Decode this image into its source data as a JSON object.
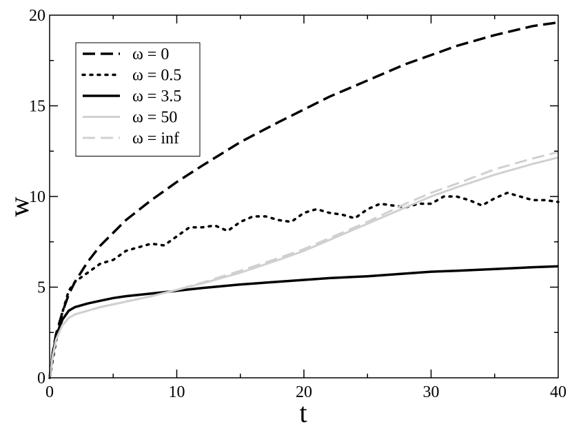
{
  "chart_data": {
    "type": "line",
    "title": "",
    "xlabel": "t",
    "ylabel": "w",
    "xlim": [
      0,
      40
    ],
    "ylim": [
      0,
      20
    ],
    "xticks": [
      0,
      10,
      20,
      30,
      40
    ],
    "yticks": [
      0,
      5,
      10,
      15,
      20
    ],
    "xtick_labels": [
      "0",
      "10",
      "20",
      "30",
      "40"
    ],
    "ytick_labels": [
      "0",
      "5",
      "10",
      "15",
      "20"
    ],
    "grid": false,
    "legend_position": "top-left",
    "series": [
      {
        "name": "ω = 0",
        "color": "#000000",
        "style": "dashed",
        "x": [
          0,
          0.25,
          0.5,
          1,
          1.5,
          2,
          3,
          4,
          5,
          6,
          8,
          10,
          12,
          15,
          18,
          20,
          22,
          25,
          28,
          30,
          32,
          35,
          38,
          40
        ],
        "y": [
          0,
          1.4,
          2.4,
          3.6,
          4.6,
          5.3,
          6.4,
          7.3,
          8.0,
          8.7,
          9.8,
          10.8,
          11.7,
          13.0,
          14.1,
          14.8,
          15.5,
          16.4,
          17.3,
          17.8,
          18.3,
          18.9,
          19.4,
          19.6
        ]
      },
      {
        "name": "ω = 0.5",
        "color": "#000000",
        "style": "dotted",
        "x": [
          0,
          0.5,
          1,
          1.5,
          2,
          3,
          4,
          5,
          6,
          7,
          8,
          9,
          10,
          11,
          12,
          13,
          14,
          15,
          16,
          17,
          18,
          19,
          20,
          21,
          22,
          23,
          24,
          25,
          26,
          27,
          28,
          29,
          30,
          31,
          32,
          33,
          34,
          35,
          36,
          37,
          38,
          39,
          40
        ],
        "y": [
          0,
          2.0,
          3.6,
          4.8,
          5.3,
          5.8,
          6.3,
          6.5,
          7.0,
          7.2,
          7.4,
          7.3,
          7.8,
          8.3,
          8.3,
          8.4,
          8.1,
          8.6,
          8.9,
          8.9,
          8.7,
          8.6,
          9.1,
          9.3,
          9.1,
          9.0,
          8.8,
          9.3,
          9.6,
          9.5,
          9.4,
          9.6,
          9.6,
          10.0,
          10.0,
          9.8,
          9.5,
          9.9,
          10.2,
          10.0,
          9.8,
          9.8,
          9.7
        ]
      },
      {
        "name": "ω = 3.5",
        "color": "#000000",
        "style": "solid",
        "x": [
          0,
          0.25,
          0.5,
          1,
          1.5,
          2,
          3,
          4,
          5,
          6,
          8,
          10,
          12,
          15,
          18,
          20,
          22,
          25,
          28,
          30,
          32,
          35,
          38,
          40
        ],
        "y": [
          0,
          1.3,
          2.3,
          3.2,
          3.7,
          3.9,
          4.1,
          4.25,
          4.4,
          4.5,
          4.65,
          4.8,
          4.95,
          5.15,
          5.3,
          5.4,
          5.5,
          5.6,
          5.75,
          5.85,
          5.9,
          6.0,
          6.1,
          6.15
        ]
      },
      {
        "name": "ω = 50",
        "color": "#d0d0d0",
        "style": "solid",
        "x": [
          0,
          0.25,
          0.5,
          1,
          1.5,
          2,
          3,
          4,
          5,
          6,
          8,
          10,
          12,
          15,
          18,
          20,
          22,
          25,
          28,
          30,
          32,
          35,
          38,
          40
        ],
        "y": [
          0,
          1.2,
          2.1,
          2.9,
          3.3,
          3.5,
          3.7,
          3.9,
          4.05,
          4.2,
          4.5,
          4.85,
          5.2,
          5.8,
          6.5,
          7.0,
          7.6,
          8.5,
          9.4,
          10.0,
          10.5,
          11.2,
          11.8,
          12.15
        ]
      },
      {
        "name": "ω = inf",
        "color": "#d0d0d0",
        "style": "dashed",
        "x": [
          0,
          0.25,
          0.5,
          1,
          1.5,
          2,
          3,
          4,
          5,
          6,
          8,
          10,
          12,
          15,
          18,
          20,
          22,
          25,
          28,
          30,
          32,
          35,
          38,
          40
        ],
        "y": [
          0,
          1.2,
          2.1,
          2.9,
          3.3,
          3.5,
          3.7,
          3.9,
          4.05,
          4.2,
          4.5,
          4.85,
          5.25,
          5.9,
          6.6,
          7.1,
          7.7,
          8.6,
          9.6,
          10.2,
          10.7,
          11.5,
          12.1,
          12.45
        ]
      }
    ]
  }
}
